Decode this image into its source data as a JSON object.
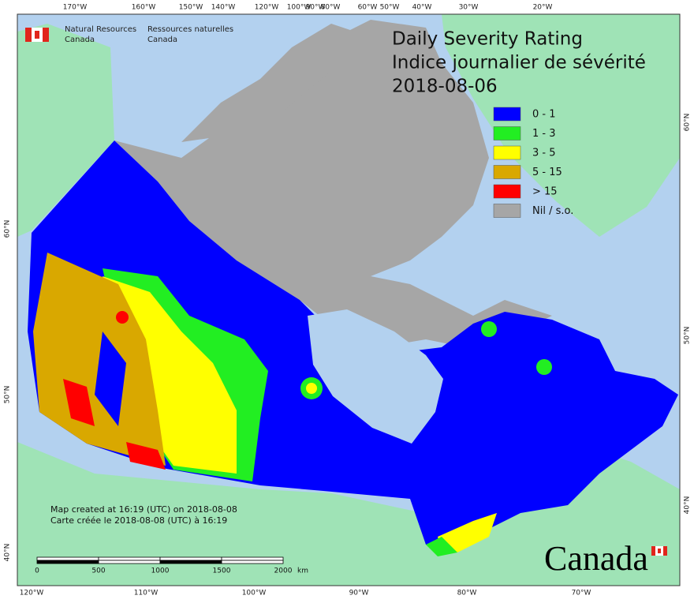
{
  "header": {
    "agency_en": [
      "Natural Resources",
      "Canada"
    ],
    "agency_fr": [
      "Ressources naturelles",
      "Canada"
    ]
  },
  "title": {
    "lines": [
      "Daily Severity Rating",
      "Indice journalier de sévérité",
      "2018-08-06"
    ]
  },
  "legend": {
    "items": [
      {
        "label": "0 - 1",
        "color": "#0000ff"
      },
      {
        "label": "1 - 3",
        "color": "#22ee22"
      },
      {
        "label": "3 - 5",
        "color": "#ffff00"
      },
      {
        "label": "5 - 15",
        "color": "#d9a800"
      },
      {
        "label": "> 15",
        "color": "#ff0000"
      },
      {
        "label": "Nil / s.o.",
        "color": "#a6a6a6"
      }
    ]
  },
  "axes": {
    "top": [
      "170°W",
      "160°W",
      "150°W",
      "140°W",
      "120°W",
      "100°W",
      "90°W",
      "80°W",
      "60°W",
      "50°W",
      "40°W",
      "30°W",
      "20°W"
    ],
    "bottom": [
      "120°W",
      "110°W",
      "100°W",
      "90°W",
      "80°W",
      "70°W"
    ],
    "left": [
      "60°N",
      "50°N",
      "40°N"
    ],
    "right": [
      "60°N",
      "50°N",
      "40°N"
    ]
  },
  "credits": [
    "Map created at 16:19 (UTC) on 2018-08-08",
    "Carte créée le 2018-08-08 (UTC) à 16:19"
  ],
  "scale_bar": {
    "labels": [
      "0",
      "500",
      "1000",
      "1500",
      "2000"
    ],
    "unit": "km"
  },
  "wordmark": "Canada"
}
